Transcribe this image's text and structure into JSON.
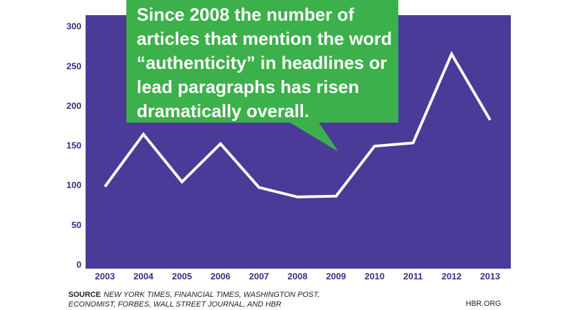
{
  "chart_data": {
    "type": "line",
    "annotation": "Since 2008 the number of articles that mention the word “authenticity” in headlines or lead paragraphs has risen dramatically overall.",
    "categories": [
      "2003",
      "2004",
      "2005",
      "2006",
      "2007",
      "2008",
      "2009",
      "2010",
      "2011",
      "2012",
      "2013"
    ],
    "values": [
      99,
      165,
      105,
      153,
      98,
      86,
      87,
      150,
      154,
      266,
      183
    ],
    "color": "#ffffff",
    "background": "#4b3a98",
    "callout_color": "#3cb04a",
    "ylim": [
      0,
      315
    ],
    "yticks": [
      0,
      50,
      100,
      150,
      200,
      250,
      300
    ],
    "grid": false,
    "source_label": "SOURCE",
    "source": "NEW YORK TIMES, FINANCIAL TIMES, WASHINGTON POST, ECONOMIST, FORBES, WALL STREET JOURNAL, AND HBR",
    "credit": "HBR.ORG"
  }
}
